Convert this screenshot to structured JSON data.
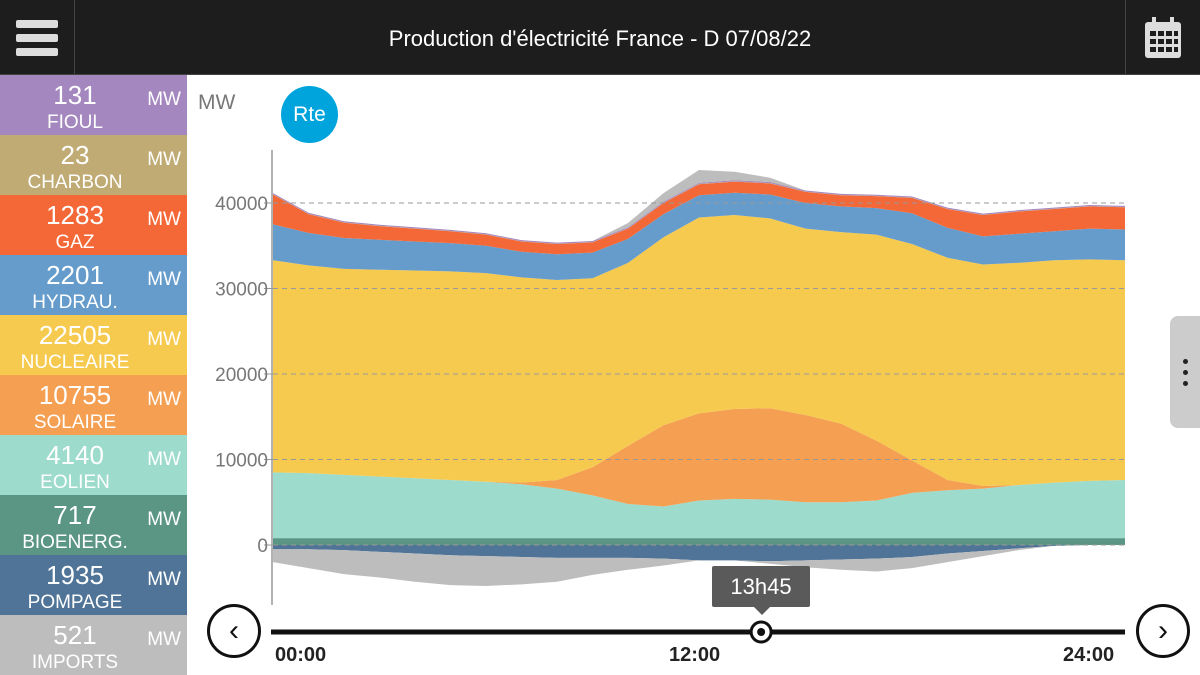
{
  "header": {
    "title": "Production d'électricité France - D 07/08/22"
  },
  "sidebar": {
    "items": [
      {
        "value": "131",
        "unit": "MW",
        "label": "FIOUL",
        "color": "#a487bf"
      },
      {
        "value": "23",
        "unit": "MW",
        "label": "CHARBON",
        "color": "#bfab73"
      },
      {
        "value": "1283",
        "unit": "MW",
        "label": "GAZ",
        "color": "#f46736"
      },
      {
        "value": "2201",
        "unit": "MW",
        "label": "HYDRAU.",
        "color": "#669ccb"
      },
      {
        "value": "22505",
        "unit": "MW",
        "label": "NUCLEAIRE",
        "color": "#f6c94f"
      },
      {
        "value": "10755",
        "unit": "MW",
        "label": "SOLAIRE",
        "color": "#f49f52"
      },
      {
        "value": "4140",
        "unit": "MW",
        "label": "EOLIEN",
        "color": "#9ddbcc"
      },
      {
        "value": "717",
        "unit": "MW",
        "label": "BIOENERG.",
        "color": "#5a9683"
      },
      {
        "value": "1935",
        "unit": "MW",
        "label": "POMPAGE",
        "color": "#4f7498"
      },
      {
        "value": "521",
        "unit": "MW",
        "label": "IMPORTS",
        "color": "#bdbdbd"
      }
    ]
  },
  "logo": "Rte",
  "cursor": {
    "time": "13h45",
    "hour": 13.75
  },
  "chart_data": {
    "type": "area",
    "ylabel": "MW",
    "yticks": [
      "0",
      "10000",
      "20000",
      "30000",
      "40000"
    ],
    "ylim": [
      -6000,
      46000
    ],
    "xlim": [
      0,
      24
    ],
    "xticks": [
      "00:00",
      "12:00",
      "24:00"
    ],
    "x": [
      0,
      1,
      2,
      3,
      4,
      5,
      6,
      7,
      8,
      9,
      10,
      11,
      12,
      13,
      14,
      15,
      16,
      17,
      18,
      19,
      20,
      21,
      22,
      23,
      24
    ],
    "series": [
      {
        "name": "BIOENERG.",
        "color": "#5a9683",
        "values": [
          800,
          800,
          800,
          800,
          800,
          800,
          800,
          800,
          800,
          800,
          800,
          800,
          800,
          800,
          800,
          800,
          800,
          800,
          800,
          800,
          800,
          800,
          800,
          800,
          800
        ]
      },
      {
        "name": "EOLIEN",
        "color": "#9ddbcc",
        "values": [
          7700,
          7600,
          7400,
          7200,
          7000,
          6800,
          6600,
          6300,
          5800,
          5000,
          4000,
          3700,
          4400,
          4600,
          4500,
          4200,
          4200,
          4400,
          5300,
          5600,
          5800,
          6200,
          6500,
          6700,
          6800
        ]
      },
      {
        "name": "SOLAIRE",
        "color": "#f49f52",
        "values": [
          0,
          0,
          0,
          0,
          0,
          0,
          0,
          200,
          1000,
          3300,
          6800,
          9500,
          10200,
          10500,
          10700,
          10200,
          9200,
          7000,
          3800,
          1200,
          300,
          0,
          0,
          0,
          0
        ]
      },
      {
        "name": "NUCLEAIRE",
        "color": "#f6c94f",
        "values": [
          24800,
          24300,
          24100,
          24200,
          24300,
          24400,
          24400,
          24000,
          23400,
          22100,
          21400,
          22000,
          22900,
          22700,
          22200,
          21800,
          22400,
          24100,
          25300,
          26000,
          25900,
          26000,
          26000,
          25900,
          25700
        ]
      },
      {
        "name": "HYDRAU.",
        "color": "#669ccb",
        "values": [
          4200,
          3800,
          3600,
          3500,
          3400,
          3300,
          3200,
          3000,
          3000,
          3000,
          2800,
          2700,
          2600,
          2600,
          2800,
          3000,
          3000,
          3100,
          3600,
          3500,
          3300,
          3400,
          3400,
          3600,
          3600
        ]
      },
      {
        "name": "GAZ",
        "color": "#f46736",
        "values": [
          3500,
          2200,
          1800,
          1600,
          1500,
          1400,
          1300,
          1200,
          1200,
          1200,
          1200,
          1300,
          1300,
          1300,
          1300,
          1300,
          1300,
          1400,
          1800,
          2200,
          2500,
          2600,
          2600,
          2600,
          2600
        ]
      },
      {
        "name": "CHARBON",
        "color": "#bfab73",
        "values": [
          30,
          30,
          30,
          30,
          30,
          30,
          30,
          30,
          30,
          30,
          30,
          30,
          30,
          30,
          30,
          30,
          30,
          30,
          30,
          30,
          30,
          30,
          30,
          30,
          30
        ]
      },
      {
        "name": "FIOUL",
        "color": "#a487bf",
        "values": [
          130,
          130,
          130,
          130,
          130,
          130,
          130,
          130,
          130,
          130,
          130,
          130,
          130,
          130,
          130,
          130,
          130,
          130,
          130,
          130,
          130,
          130,
          130,
          130,
          130
        ]
      },
      {
        "name": "IMPORTS",
        "color": "#bdbdbd",
        "values": [
          0,
          0,
          0,
          0,
          0,
          0,
          0,
          0,
          0,
          0,
          500,
          1000,
          1500,
          1000,
          500,
          0,
          0,
          0,
          0,
          0,
          0,
          0,
          0,
          0,
          0
        ]
      }
    ],
    "negative_series": [
      {
        "name": "POMPAGE",
        "color": "#4f7498",
        "values": [
          -500,
          -500,
          -600,
          -800,
          -1000,
          -1200,
          -1300,
          -1400,
          -1500,
          -1500,
          -1500,
          -1600,
          -1800,
          -1800,
          -1900,
          -1800,
          -1700,
          -1600,
          -1400,
          -1000,
          -700,
          -400,
          -100,
          0,
          0
        ]
      },
      {
        "name": "IMPORTS",
        "color": "#bdbdbd",
        "values": [
          -1500,
          -2200,
          -2800,
          -3000,
          -3300,
          -3500,
          -3500,
          -3200,
          -2800,
          -2000,
          -1400,
          -800,
          0,
          0,
          -300,
          -800,
          -1200,
          -1500,
          -1300,
          -1000,
          -600,
          -200,
          0,
          0,
          0
        ]
      }
    ]
  }
}
